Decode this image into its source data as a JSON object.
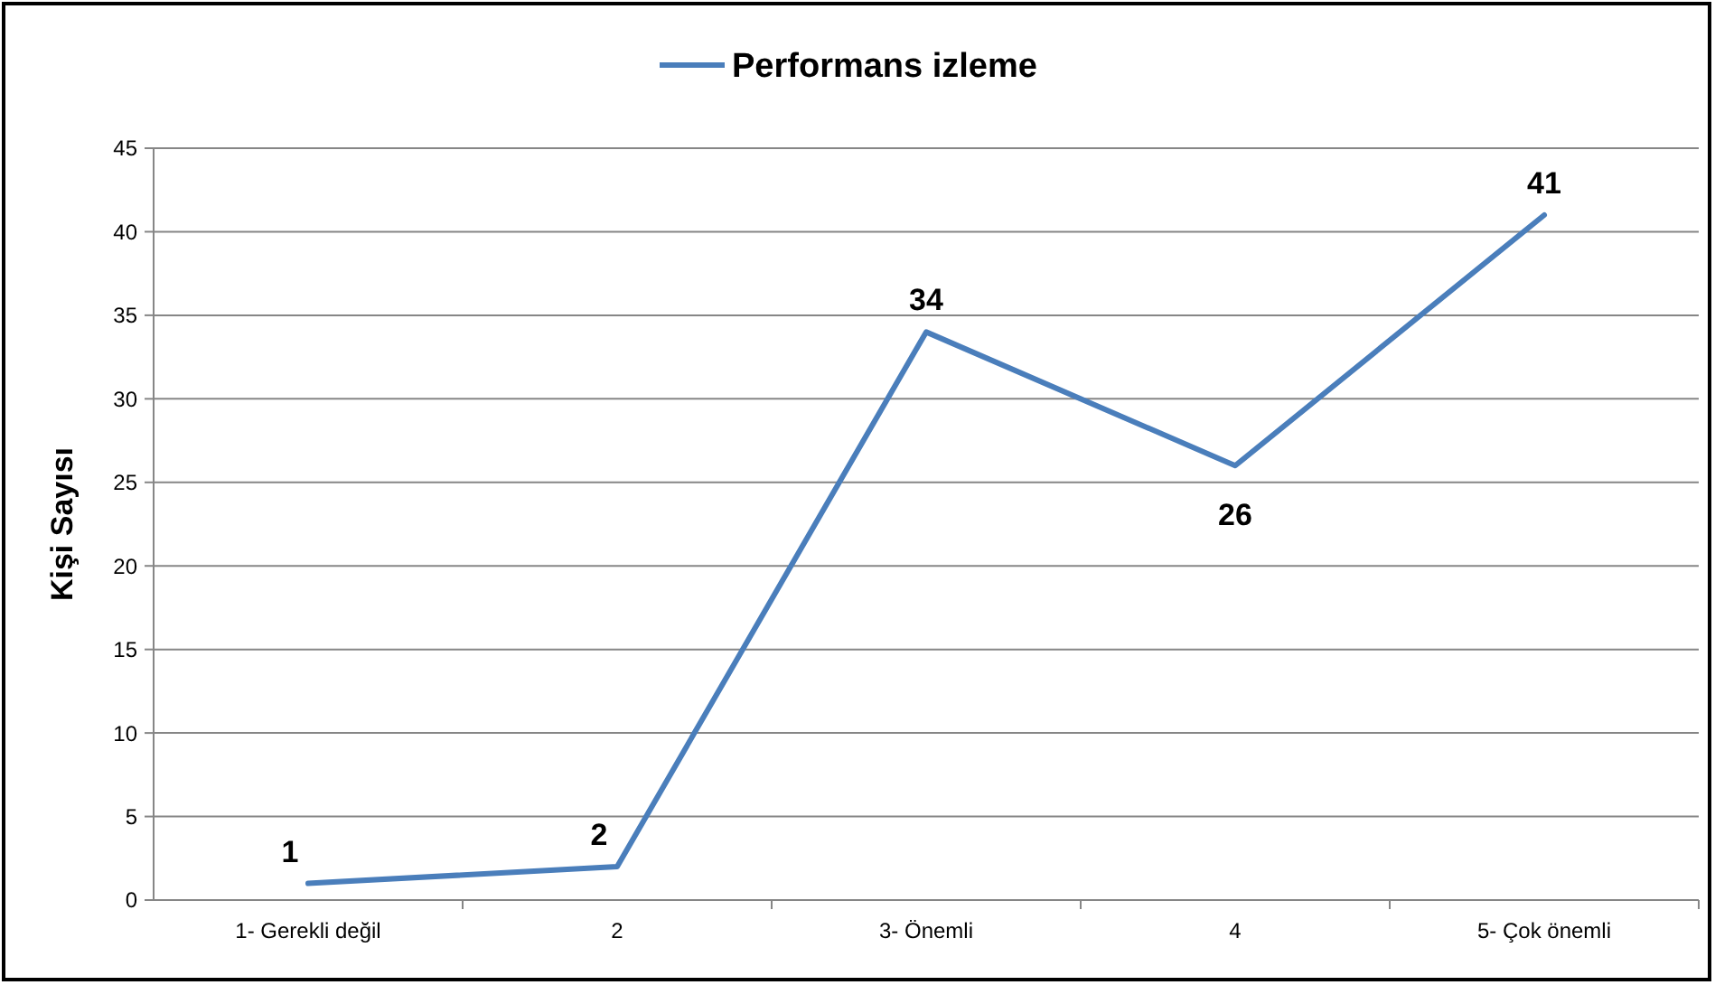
{
  "chart_data": {
    "type": "line",
    "ylabel": "Kişi Sayısı",
    "categories": [
      "1- Gerekli değil",
      "2",
      "3- Önemli",
      "4",
      "5- Çok önemli"
    ],
    "series": [
      {
        "name": "Performans izleme",
        "color": "#4a7ebb",
        "values": [
          1,
          2,
          34,
          26,
          41
        ]
      }
    ],
    "ylim": [
      0,
      45
    ],
    "yticks": [
      0,
      5,
      10,
      15,
      20,
      25,
      30,
      35,
      40,
      45
    ],
    "grid": "y",
    "legend": "top",
    "data_labels": true,
    "marker": "none",
    "line_style": "solid"
  }
}
